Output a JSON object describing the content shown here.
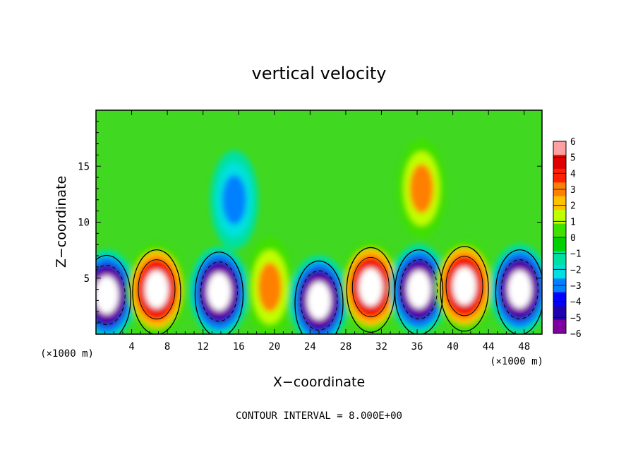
{
  "chart_data": {
    "type": "heatmap",
    "title": "vertical velocity",
    "xlabel": "X−coordinate",
    "ylabel": "Z−coordinate",
    "x_unit_label": "(×1000 m)",
    "y_unit_label": "(×1000 m)",
    "xlim": [
      0,
      50
    ],
    "ylim": [
      0,
      20
    ],
    "x_ticks": [
      4,
      8,
      12,
      16,
      20,
      24,
      28,
      32,
      36,
      40,
      44,
      48
    ],
    "x_tick_labels": [
      "4",
      "8",
      "12",
      "16",
      "20",
      "24",
      "28",
      "32",
      "36",
      "40",
      "44",
      "48"
    ],
    "y_ticks": [
      5,
      10,
      15
    ],
    "y_tick_labels": [
      "5",
      "10",
      "15"
    ],
    "colorbar": {
      "min": -6,
      "max": 6,
      "ticks": [
        6,
        5,
        4,
        3,
        2,
        1,
        0,
        -1,
        -2,
        -3,
        -4,
        -5,
        -6
      ],
      "tick_labels": [
        "6",
        "5",
        "4",
        "3",
        "2",
        "1",
        "0",
        "−1",
        "−2",
        "−3",
        "−4",
        "−5",
        "−6"
      ],
      "colors": [
        "#7f00a0",
        "#2000b0",
        "#0000ff",
        "#0080ff",
        "#00e0e0",
        "#00e0a0",
        "#00d000",
        "#40e000",
        "#c0ff00",
        "#ffc000",
        "#ff8000",
        "#ff2000",
        "#e00000",
        "#ffa0a0"
      ]
    },
    "cells": [
      {
        "x": 1.2,
        "z": 3.5,
        "w": -9
      },
      {
        "x": 6.8,
        "z": 4.0,
        "w": 10
      },
      {
        "x": 13.8,
        "z": 3.8,
        "w": -9
      },
      {
        "x": 19.5,
        "z": 4.2,
        "w": 5
      },
      {
        "x": 25.0,
        "z": 3.0,
        "w": -9
      },
      {
        "x": 30.8,
        "z": 4.2,
        "w": 10
      },
      {
        "x": 36.2,
        "z": 4.0,
        "w": -10
      },
      {
        "x": 41.3,
        "z": 4.3,
        "w": 10
      },
      {
        "x": 47.5,
        "z": 4.0,
        "w": -9
      },
      {
        "x": 15.5,
        "z": 12.0,
        "w": -2
      },
      {
        "x": 36.5,
        "z": 13.0,
        "w": 3
      }
    ],
    "grid": false
  },
  "footer": {
    "contour_interval": "CONTOUR INTERVAL = 8.000E+00"
  }
}
